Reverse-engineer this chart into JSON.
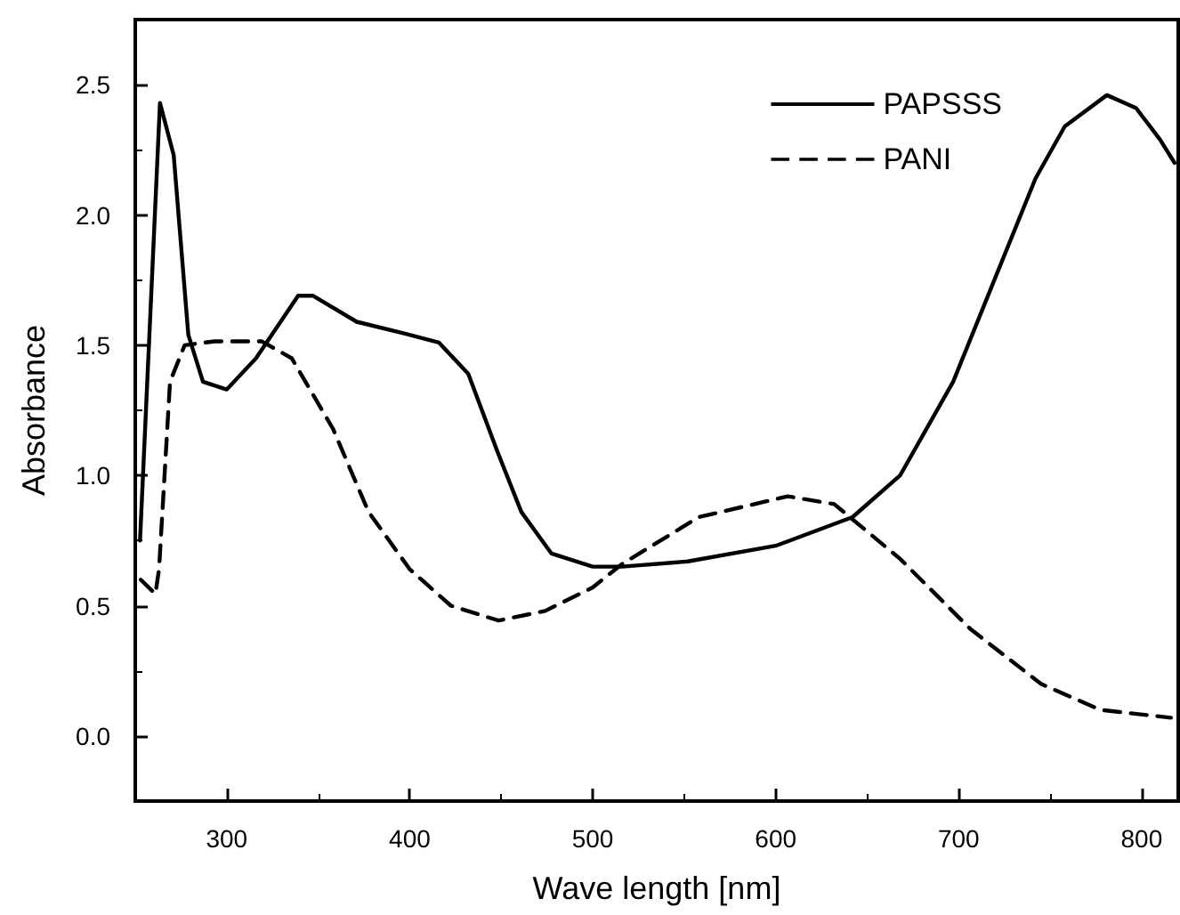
{
  "chart_data": {
    "type": "line",
    "xlabel": "Wave length [nm]",
    "ylabel": "Absorbance",
    "xlim": [
      250,
      820
    ],
    "xticks": [
      300,
      400,
      500,
      600,
      700,
      800
    ],
    "ylim": [
      -0.25,
      2.75
    ],
    "yticks": [
      {
        "value": 0,
        "label": "0.0"
      },
      {
        "value": 0.5,
        "label": "0.5"
      },
      {
        "value": 1,
        "label": "1.0"
      },
      {
        "value": 1.5,
        "label": "1.5"
      },
      {
        "value": 2,
        "label": "2.0"
      },
      {
        "value": 2.5,
        "label": "2.5"
      }
    ],
    "grid": false,
    "legend": "top right",
    "marker": "none",
    "series": [
      {
        "name": "PAPSSS",
        "color": "#000000",
        "line_style": "solid",
        "x": [
          252.6,
          263.5,
          271,
          279,
          287,
          300,
          316,
          339,
          347,
          371,
          397,
          416,
          432,
          448,
          461,
          477.5,
          500,
          516,
          552,
          600,
          642,
          668,
          697,
          719.5,
          742,
          758,
          781,
          797,
          810,
          818
        ],
        "values": [
          0.75,
          2.43,
          2.23,
          1.54,
          1.36,
          1.33,
          1.45,
          1.69,
          1.69,
          1.59,
          1.545,
          1.51,
          1.39,
          1.09,
          0.86,
          0.7,
          0.65,
          0.65,
          0.67,
          0.73,
          0.84,
          1.0,
          1.36,
          1.75,
          2.14,
          2.34,
          2.46,
          2.41,
          2.29,
          2.2
        ]
      },
      {
        "name": "PANI",
        "color": "#000000",
        "line_style": "dashed",
        "x": [
          253,
          261,
          263,
          266,
          269,
          277,
          293.5,
          319,
          335.5,
          358,
          377.5,
          400,
          422.5,
          448.5,
          474,
          500,
          516,
          558,
          606.5,
          632,
          668,
          706.5,
          745,
          777.5,
          816
        ],
        "values": [
          0.6,
          0.545,
          0.64,
          1.0,
          1.36,
          1.5,
          1.515,
          1.515,
          1.45,
          1.18,
          0.86,
          0.64,
          0.5,
          0.443,
          0.48,
          0.57,
          0.66,
          0.84,
          0.92,
          0.89,
          0.68,
          0.41,
          0.2,
          0.1,
          0.07
        ]
      }
    ]
  }
}
